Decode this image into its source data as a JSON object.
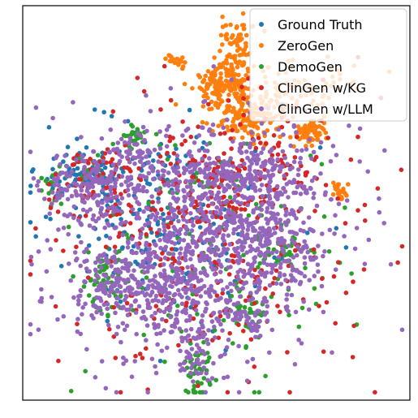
{
  "chart_data": {
    "type": "scatter",
    "title": "",
    "xlabel": "",
    "ylabel": "",
    "xlim": [
      0,
      100
    ],
    "ylim": [
      0,
      100
    ],
    "axes_ticks": "none",
    "grid": false,
    "legend_position": "top-right",
    "series": [
      {
        "name": "Ground Truth",
        "color": "#1f77b4",
        "clusters": [
          {
            "cx": 17,
            "cy": 58,
            "sx": 4,
            "sy": 3,
            "n": 70
          },
          {
            "cx": 30,
            "cy": 46,
            "sx": 9,
            "sy": 10,
            "n": 110
          },
          {
            "cx": 46,
            "cy": 41,
            "sx": 16,
            "sy": 12,
            "n": 90
          },
          {
            "cx": 38,
            "cy": 61,
            "sx": 4,
            "sy": 2,
            "n": 12
          },
          {
            "cx": 8,
            "cy": 55,
            "sx": 3,
            "sy": 2,
            "n": 15
          }
        ]
      },
      {
        "name": "ZeroGen",
        "color": "#ff7f0e",
        "clusters": [
          {
            "cx": 53,
            "cy": 80,
            "sx": 4,
            "sy": 4,
            "n": 180
          },
          {
            "cx": 55,
            "cy": 91,
            "sx": 2,
            "sy": 3,
            "n": 50
          },
          {
            "cx": 59,
            "cy": 72,
            "sx": 5,
            "sy": 3,
            "n": 100
          },
          {
            "cx": 58,
            "cy": 70,
            "sx": 6,
            "sy": 4,
            "n": 40
          },
          {
            "cx": 74,
            "cy": 68,
            "sx": 2,
            "sy": 1.5,
            "n": 70
          },
          {
            "cx": 71,
            "cy": 80,
            "sx": 8,
            "sy": 4,
            "n": 70
          },
          {
            "cx": 82,
            "cy": 53,
            "sx": 1,
            "sy": 1.5,
            "n": 25
          },
          {
            "cx": 40,
            "cy": 86,
            "sx": 1.5,
            "sy": 1,
            "n": 18
          }
        ]
      },
      {
        "name": "DemoGen",
        "color": "#2ca02c",
        "clusters": [
          {
            "cx": 29,
            "cy": 67,
            "sx": 2,
            "sy": 1.5,
            "n": 30
          },
          {
            "cx": 16,
            "cy": 58,
            "sx": 3,
            "sy": 2,
            "n": 15
          },
          {
            "cx": 8,
            "cy": 53,
            "sx": 2,
            "sy": 2,
            "n": 14
          },
          {
            "cx": 22,
            "cy": 30,
            "sx": 3,
            "sy": 4,
            "n": 60
          },
          {
            "cx": 45,
            "cy": 6,
            "sx": 2,
            "sy": 3,
            "n": 40
          },
          {
            "cx": 58,
            "cy": 22,
            "sx": 3,
            "sy": 3,
            "n": 40
          },
          {
            "cx": 68,
            "cy": 38,
            "sx": 4,
            "sy": 3,
            "n": 40
          },
          {
            "cx": 47,
            "cy": 55,
            "sx": 3,
            "sy": 2,
            "n": 20
          },
          {
            "cx": 50,
            "cy": 38,
            "sx": 18,
            "sy": 16,
            "n": 110
          }
        ]
      },
      {
        "name": "ClinGen w/KG",
        "color": "#d62728",
        "clusters": [
          {
            "cx": 49,
            "cy": 42,
            "sx": 18,
            "sy": 18,
            "n": 330
          },
          {
            "cx": 20,
            "cy": 55,
            "sx": 6,
            "sy": 5,
            "n": 60
          },
          {
            "cx": 52,
            "cy": 54,
            "sx": 5,
            "sy": 4,
            "n": 40
          },
          {
            "cx": 62,
            "cy": 60,
            "sx": 7,
            "sy": 6,
            "n": 60
          }
        ]
      },
      {
        "name": "ClinGen w/LLM",
        "color": "#9467bd",
        "clusters": [
          {
            "cx": 46,
            "cy": 41,
            "sx": 17,
            "sy": 15,
            "n": 900
          },
          {
            "cx": 20,
            "cy": 55,
            "sx": 7,
            "sy": 4,
            "n": 150
          },
          {
            "cx": 65,
            "cy": 40,
            "sx": 7,
            "sy": 6,
            "n": 160
          },
          {
            "cx": 35,
            "cy": 28,
            "sx": 8,
            "sy": 5,
            "n": 160
          },
          {
            "cx": 45,
            "cy": 12,
            "sx": 3,
            "sy": 4,
            "n": 50
          },
          {
            "cx": 50,
            "cy": 58,
            "sx": 8,
            "sy": 4,
            "n": 120
          },
          {
            "cx": 65,
            "cy": 58,
            "sx": 6,
            "sy": 4,
            "n": 80
          },
          {
            "cx": 22,
            "cy": 30,
            "sx": 4,
            "sy": 4,
            "n": 60
          },
          {
            "cx": 30,
            "cy": 64,
            "sx": 3,
            "sy": 2,
            "n": 30
          },
          {
            "cx": 58,
            "cy": 22,
            "sx": 3,
            "sy": 3,
            "n": 40
          }
        ]
      }
    ],
    "outliers": [
      {
        "x": 21,
        "y": 73,
        "color": "#1f77b4"
      },
      {
        "x": 10,
        "y": 34,
        "color": "#1f77b4"
      },
      {
        "x": 98,
        "y": 39,
        "color": "#d62728"
      },
      {
        "x": 67,
        "y": 75,
        "color": "#1f77b4"
      },
      {
        "x": 23,
        "y": 72,
        "color": "#1f77b4"
      }
    ]
  }
}
